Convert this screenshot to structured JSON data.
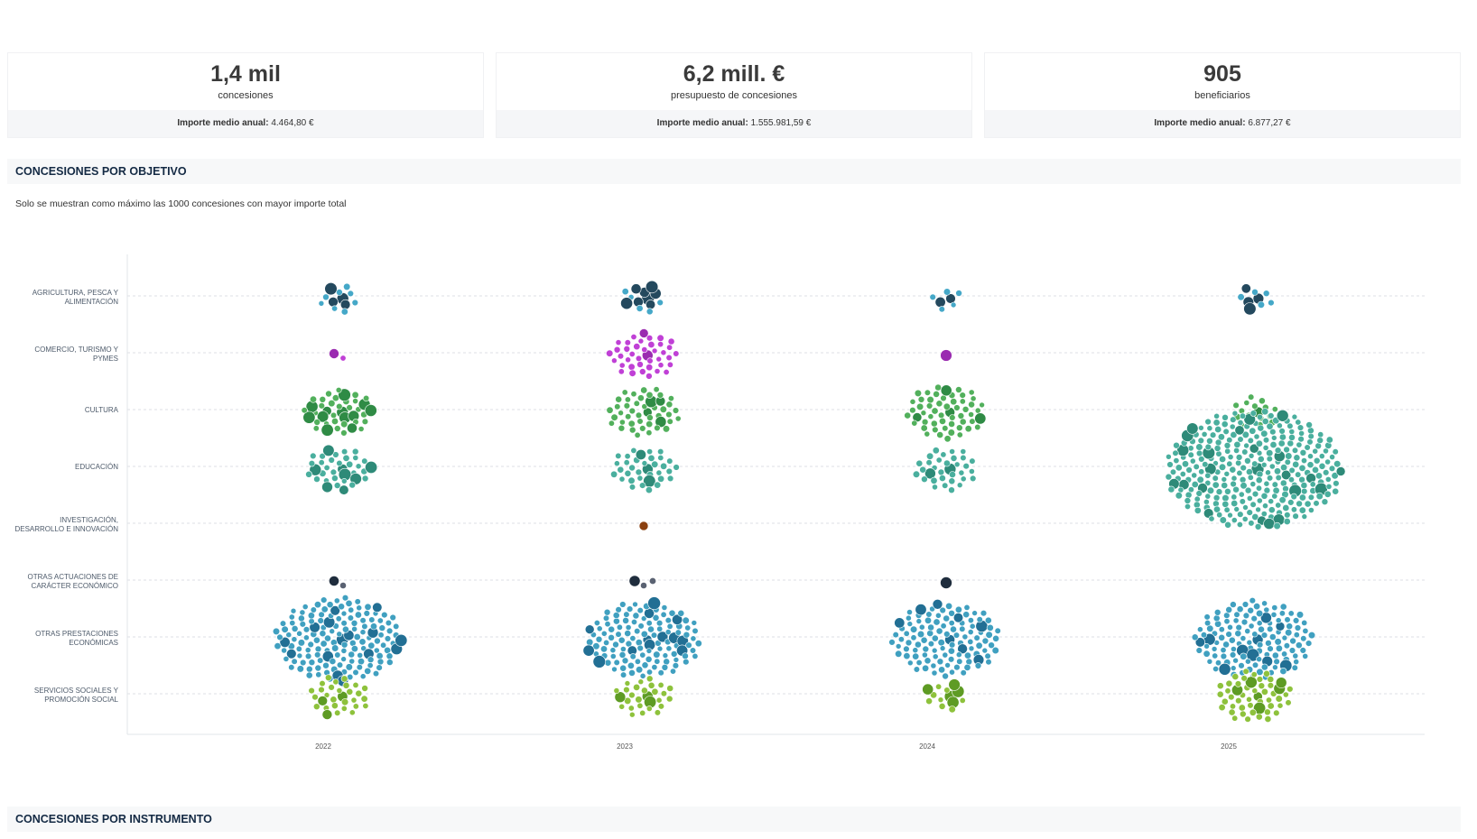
{
  "kpis": [
    {
      "value": "1,4 mil",
      "label": "concesiones",
      "footer_label": "Importe medio anual:",
      "footer_value": "4.464,80 €"
    },
    {
      "value": "6,2 mill. €",
      "label": "presupuesto de concesiones",
      "footer_label": "Importe medio anual:",
      "footer_value": "1.555.981,59 €"
    },
    {
      "value": "905",
      "label": "beneficiarios",
      "footer_label": "Importe medio anual:",
      "footer_value": "6.877,27 €"
    }
  ],
  "sections": {
    "objetivo_title": "CONCESIONES POR OBJETIVO",
    "objetivo_note": "Solo se muestran como máximo las 1000 concesiones con mayor importe total",
    "instrumento_title": "CONCESIONES POR INSTRUMENTO"
  },
  "chart_data": {
    "type": "scatter",
    "subtype": "beeswarm",
    "x": [
      "2022",
      "2023",
      "2024",
      "2025"
    ],
    "grid": true,
    "categories": [
      {
        "name": "AGRICULTURA, PESCA Y ALIMENTACIÓN",
        "color": "#45a8c8",
        "dark": "#24495e",
        "counts": [
          12,
          13,
          7,
          9
        ]
      },
      {
        "name": "COMERCIO, TURISMO Y PYMES",
        "color": "#c040d6",
        "dark": "#9a2bb0",
        "counts": [
          2,
          40,
          1,
          0
        ]
      },
      {
        "name": "CULTURA",
        "color": "#52b05c",
        "dark": "#2f8b45",
        "counts": [
          40,
          45,
          55,
          17
        ]
      },
      {
        "name": "EDUCACIÓN",
        "color": "#4aaf9e",
        "dark": "#2e8a78",
        "counts": [
          35,
          35,
          33,
          300
        ]
      },
      {
        "name": "INVESTIGACIÓN, DESARROLLO E INNOVACIÓN",
        "color": "#b85c1c",
        "dark": "#8a4010",
        "counts": [
          0,
          1,
          0,
          0
        ]
      },
      {
        "name": "OTRAS ACTUACIONES DE CARÁCTER ECONÓMICO",
        "color": "#5a6272",
        "dark": "#1f2d3d",
        "counts": [
          2,
          3,
          1,
          0
        ]
      },
      {
        "name": "OTRAS PRESTACIONES ECONÓMICAS",
        "color": "#40a0c0",
        "dark": "#226f94",
        "counts": [
          150,
          120,
          110,
          130
        ]
      },
      {
        "name": "SERVICIOS SOCIALES Y PROMOCIÓN SOCIAL",
        "color": "#8ec23c",
        "dark": "#5e9b24",
        "counts": [
          30,
          28,
          13,
          50
        ]
      }
    ]
  }
}
